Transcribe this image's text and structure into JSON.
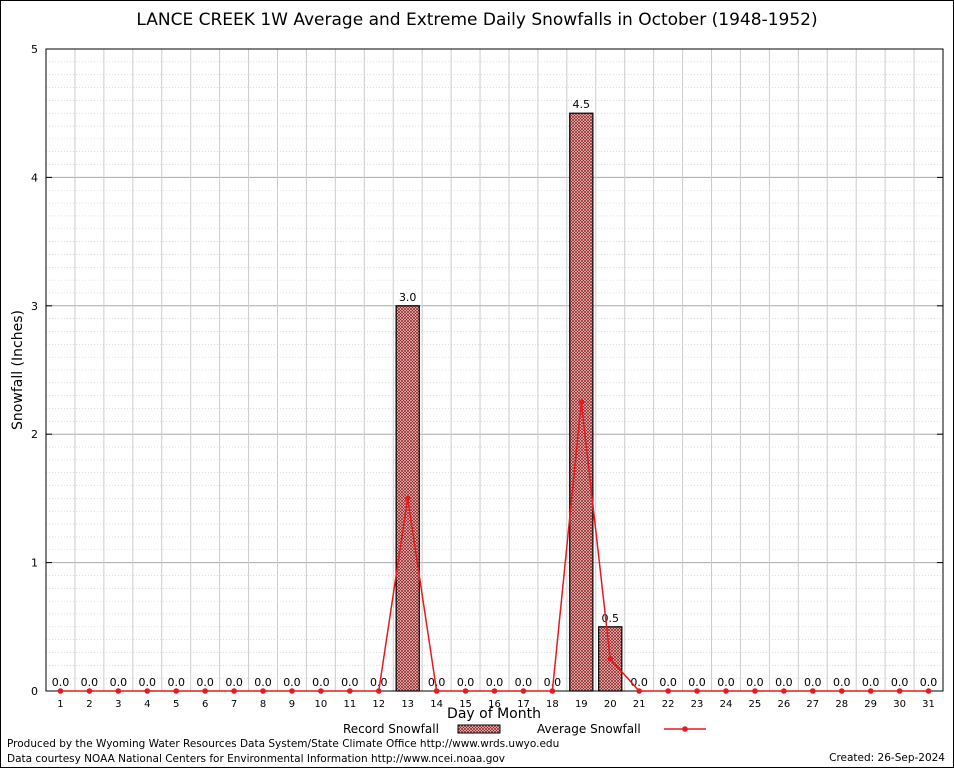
{
  "chart_data": {
    "type": "bar",
    "title": "LANCE CREEK 1W Average and Extreme Daily Snowfalls in October (1948-1952)",
    "xlabel": "Day of Month",
    "ylabel": "Snowfall (Inches)",
    "ylim": [
      0,
      5
    ],
    "yticks": [
      0,
      1,
      2,
      3,
      4,
      5
    ],
    "grid": true,
    "legend_position": "bottom",
    "categories": [
      1,
      2,
      3,
      4,
      5,
      6,
      7,
      8,
      9,
      10,
      11,
      12,
      13,
      14,
      15,
      16,
      17,
      18,
      19,
      20,
      21,
      22,
      23,
      24,
      25,
      26,
      27,
      28,
      29,
      30,
      31
    ],
    "series": [
      {
        "name": "Record Snowfall",
        "type": "bar",
        "color": "#8b1a1a",
        "values": [
          0,
          0,
          0,
          0,
          0,
          0,
          0,
          0,
          0,
          0,
          0,
          0,
          3.0,
          0,
          0,
          0,
          0,
          0,
          4.5,
          0.5,
          0,
          0,
          0,
          0,
          0,
          0,
          0,
          0,
          0,
          0,
          0
        ],
        "labels": [
          "0.0",
          "0.0",
          "0.0",
          "0.0",
          "0.0",
          "0.0",
          "0.0",
          "0.0",
          "0.0",
          "0.0",
          "0.0",
          "0.0",
          "3.0",
          "0.0",
          "0.0",
          "0.0",
          "0.0",
          "0.0",
          "4.5",
          "0.5",
          "0.0",
          "0.0",
          "0.0",
          "0.0",
          "0.0",
          "0.0",
          "0.0",
          "0.0",
          "0.0",
          "0.0",
          "0.0"
        ]
      },
      {
        "name": "Average Snowfall",
        "type": "line",
        "color": "#e8191f",
        "values": [
          0,
          0,
          0,
          0,
          0,
          0,
          0,
          0,
          0,
          0,
          0,
          0,
          1.5,
          0,
          0,
          0,
          0,
          0,
          2.25,
          0.25,
          0,
          0,
          0,
          0,
          0,
          0,
          0,
          0,
          0,
          0,
          0
        ]
      }
    ]
  },
  "footer": {
    "line1": "Produced by the Wyoming Water Resources Data System/State Climate Office http://www.wrds.uwyo.edu",
    "line2": "Data courtesy NOAA National Centers for Environmental Information http://www.ncei.noaa.gov",
    "created": "Created:  26-Sep-2024"
  }
}
